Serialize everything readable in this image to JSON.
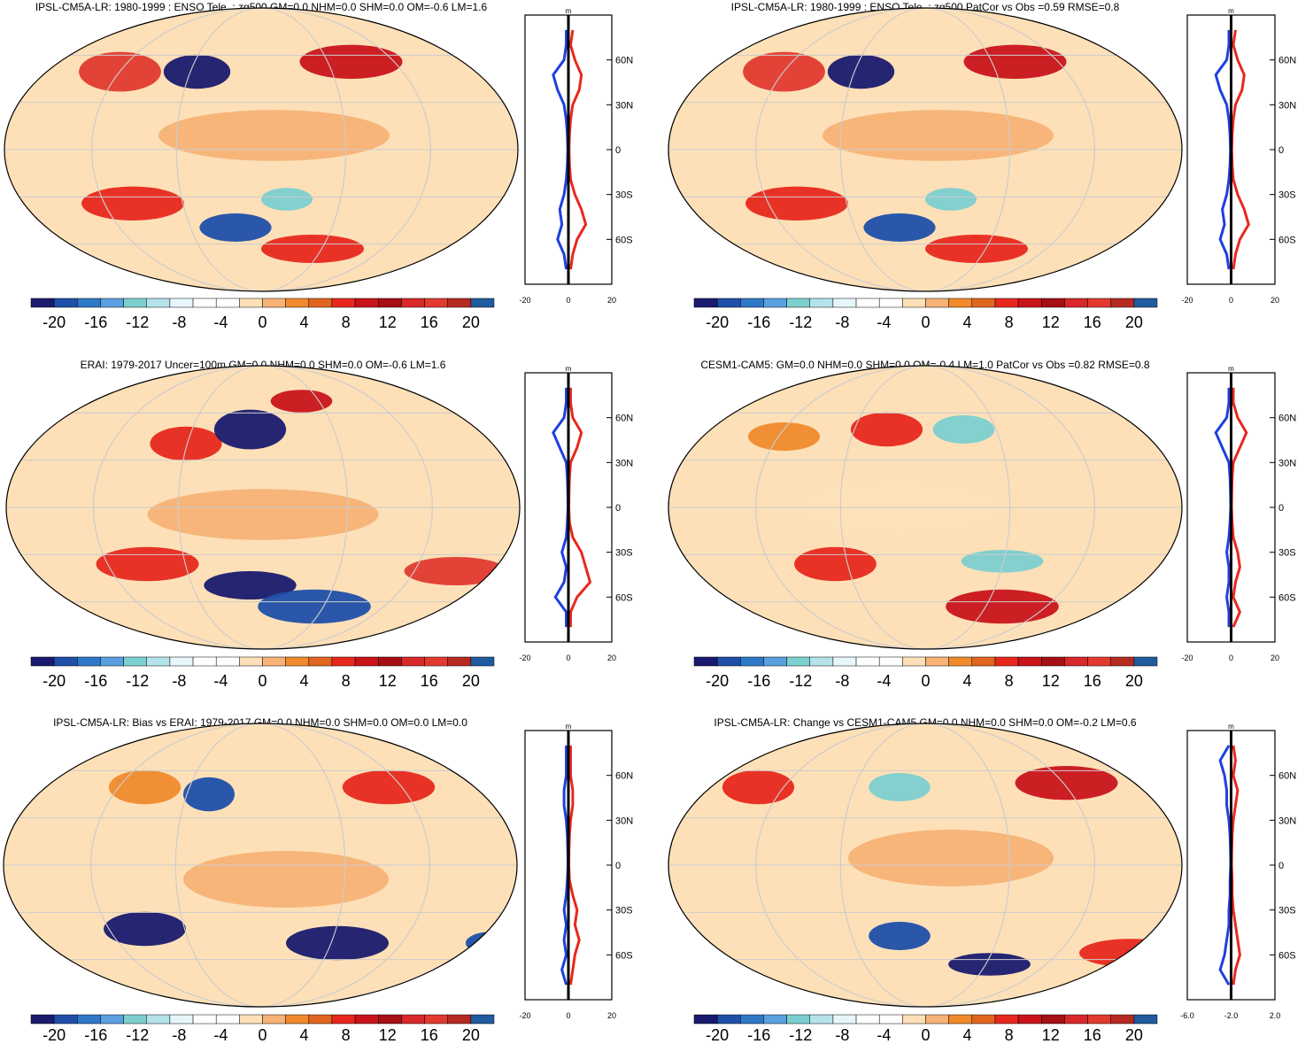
{
  "colorbar": {
    "colors": [
      "#1a1a6e",
      "#1f4fa8",
      "#2e78c8",
      "#5a9fe0",
      "#7ccfcf",
      "#b5e3ea",
      "#e6f6fa",
      "#ffffff",
      "#ffffff",
      "#fde0b8",
      "#f7b276",
      "#f08a2c",
      "#e0651f",
      "#e8281e",
      "#c9141b",
      "#a50f15",
      "#d8282a",
      "#e23a2f",
      "#b52a21",
      "#1f5b9e"
    ],
    "labels": [
      "-20",
      "-16",
      "-12",
      "-8",
      "-4",
      "0",
      "4",
      "8",
      "12",
      "16",
      "20"
    ]
  },
  "panels": [
    {
      "title": "IPSL-CM5A-LR: 1980-1999 : ENSO Tele. : zg500 GM=0.0 NHM=0.0 SHM=0.0 OM=-0.6 LM=1.6",
      "zonal": {
        "unit": "m",
        "xticks": [
          "-20",
          "0",
          "20"
        ],
        "yticks": [
          "60N",
          "30N",
          "0",
          "30S",
          "60S"
        ],
        "lat": [
          80,
          70,
          60,
          50,
          40,
          30,
          20,
          10,
          0,
          -10,
          -20,
          -30,
          -40,
          -50,
          -60,
          -70,
          -80
        ],
        "pos": [
          2,
          1,
          3,
          6,
          5,
          2,
          1,
          0.5,
          0.3,
          0.5,
          1,
          3,
          6,
          8,
          4,
          2,
          1
        ],
        "neg": [
          -1,
          -1,
          -2,
          -7,
          -5,
          -2,
          -1,
          -0.5,
          -0.3,
          -0.5,
          -1,
          -2,
          -4,
          -3,
          -5,
          -2,
          -1
        ]
      }
    },
    {
      "title": "IPSL-CM5A-LR: 1980-1999 : ENSO Tele. : zg500 PatCor vs Obs =0.59 RMSE=0.8",
      "zonal": {
        "unit": "m",
        "xticks": [
          "-20",
          "0",
          "20"
        ],
        "yticks": [
          "60N",
          "30N",
          "0",
          "30S",
          "60S"
        ],
        "lat": [
          80,
          70,
          60,
          50,
          40,
          30,
          20,
          10,
          0,
          -10,
          -20,
          -30,
          -40,
          -50,
          -60,
          -70,
          -80
        ],
        "pos": [
          2,
          1,
          3,
          6,
          5,
          2,
          1,
          0.5,
          0.3,
          0.5,
          1,
          3,
          6,
          8,
          4,
          2,
          1
        ],
        "neg": [
          -1,
          -1,
          -2,
          -7,
          -5,
          -2,
          -1,
          -0.5,
          -0.3,
          -0.5,
          -1,
          -2,
          -4,
          -3,
          -5,
          -2,
          -1
        ]
      }
    },
    {
      "title": "ERAI: 1979-2017 Uncer=100m GM=0.0 NHM=0.0 SHM=0.0 OM=-0.6 LM=1.6",
      "zonal": {
        "unit": "m",
        "xticks": [
          "-20",
          "0",
          "20"
        ],
        "yticks": [
          "60N",
          "30N",
          "0",
          "30S",
          "60S"
        ],
        "lat": [
          80,
          70,
          60,
          50,
          40,
          30,
          20,
          10,
          0,
          -10,
          -20,
          -30,
          -40,
          -50,
          -60,
          -70,
          -80
        ],
        "pos": [
          1,
          1,
          2,
          6,
          4,
          1,
          0.5,
          0.3,
          0.2,
          0.5,
          2,
          6,
          8,
          10,
          4,
          1,
          1
        ],
        "neg": [
          -1,
          -1,
          -2,
          -7,
          -4,
          -1,
          -0.5,
          -0.3,
          -0.2,
          -0.5,
          -1,
          -3,
          -1,
          -2,
          -6,
          -1,
          -1
        ]
      }
    },
    {
      "title": "CESM1-CAM5: GM=0.0 NHM=0.0 SHM=0.0 OM=-0.4 LM=1.0 PatCor vs Obs =0.82 RMSE=0.8",
      "zonal": {
        "unit": "m",
        "xticks": [
          "-20",
          "0",
          "20"
        ],
        "yticks": [
          "60N",
          "30N",
          "0",
          "30S",
          "60S"
        ],
        "lat": [
          80,
          70,
          60,
          50,
          40,
          30,
          20,
          10,
          0,
          -10,
          -20,
          -30,
          -40,
          -50,
          -60,
          -70,
          -80
        ],
        "pos": [
          1,
          1,
          3,
          7,
          4,
          1,
          0.5,
          0.3,
          0.2,
          0.5,
          1,
          3,
          4,
          2,
          1,
          4,
          1
        ],
        "neg": [
          -1,
          -1,
          -2,
          -7,
          -4,
          -1,
          -0.5,
          -0.3,
          -0.2,
          -0.5,
          -1,
          -2,
          -1,
          -1,
          -2,
          -1,
          -1
        ]
      }
    },
    {
      "title": "IPSL-CM5A-LR: Bias vs ERAI: 1979-2017 GM=0.0 NHM=0.0 SHM=0.0 OM=0.0 LM=0.0",
      "zonal": {
        "unit": "m",
        "xticks": [
          "-20",
          "0",
          "20"
        ],
        "yticks": [
          "60N",
          "30N",
          "0",
          "30S",
          "60S"
        ],
        "lat": [
          80,
          70,
          60,
          50,
          40,
          30,
          20,
          10,
          0,
          -10,
          -20,
          -30,
          -40,
          -50,
          -60,
          -70,
          -80
        ],
        "pos": [
          1,
          1,
          1,
          2,
          2,
          1,
          0.5,
          0.3,
          0.2,
          0.5,
          2,
          4,
          3,
          5,
          3,
          2,
          1
        ],
        "neg": [
          -1,
          -1,
          -1,
          -2,
          -2,
          -1,
          -0.5,
          -0.3,
          -0.2,
          -0.5,
          -1,
          -2,
          -1,
          -2,
          -1,
          -3,
          -1
        ]
      }
    },
    {
      "title": "IPSL-CM5A-LR: Change vs CESM1-CAM5 GM=0.0 NHM=0.0 SHM=0.0 OM=-0.2 LM=0.6",
      "zonal": {
        "unit": "m",
        "xticks": [
          "-6.0",
          "-2.0",
          "2.0"
        ],
        "yticks": [
          "60N",
          "30N",
          "0",
          "30S",
          "60S"
        ],
        "lat": [
          80,
          70,
          60,
          50,
          40,
          30,
          20,
          10,
          0,
          -10,
          -20,
          -30,
          -40,
          -50,
          -60,
          -70,
          -80
        ],
        "pos": [
          1,
          2,
          1,
          3,
          2,
          1,
          0.5,
          0.3,
          0.2,
          0.5,
          0.5,
          1,
          2,
          3,
          4,
          2,
          1
        ],
        "neg": [
          -1,
          -5,
          -3,
          -2,
          -2,
          -1,
          -0.5,
          -0.3,
          -0.2,
          -0.5,
          -0.5,
          -1,
          -1,
          -2,
          -3,
          -5,
          -1
        ]
      }
    }
  ]
}
